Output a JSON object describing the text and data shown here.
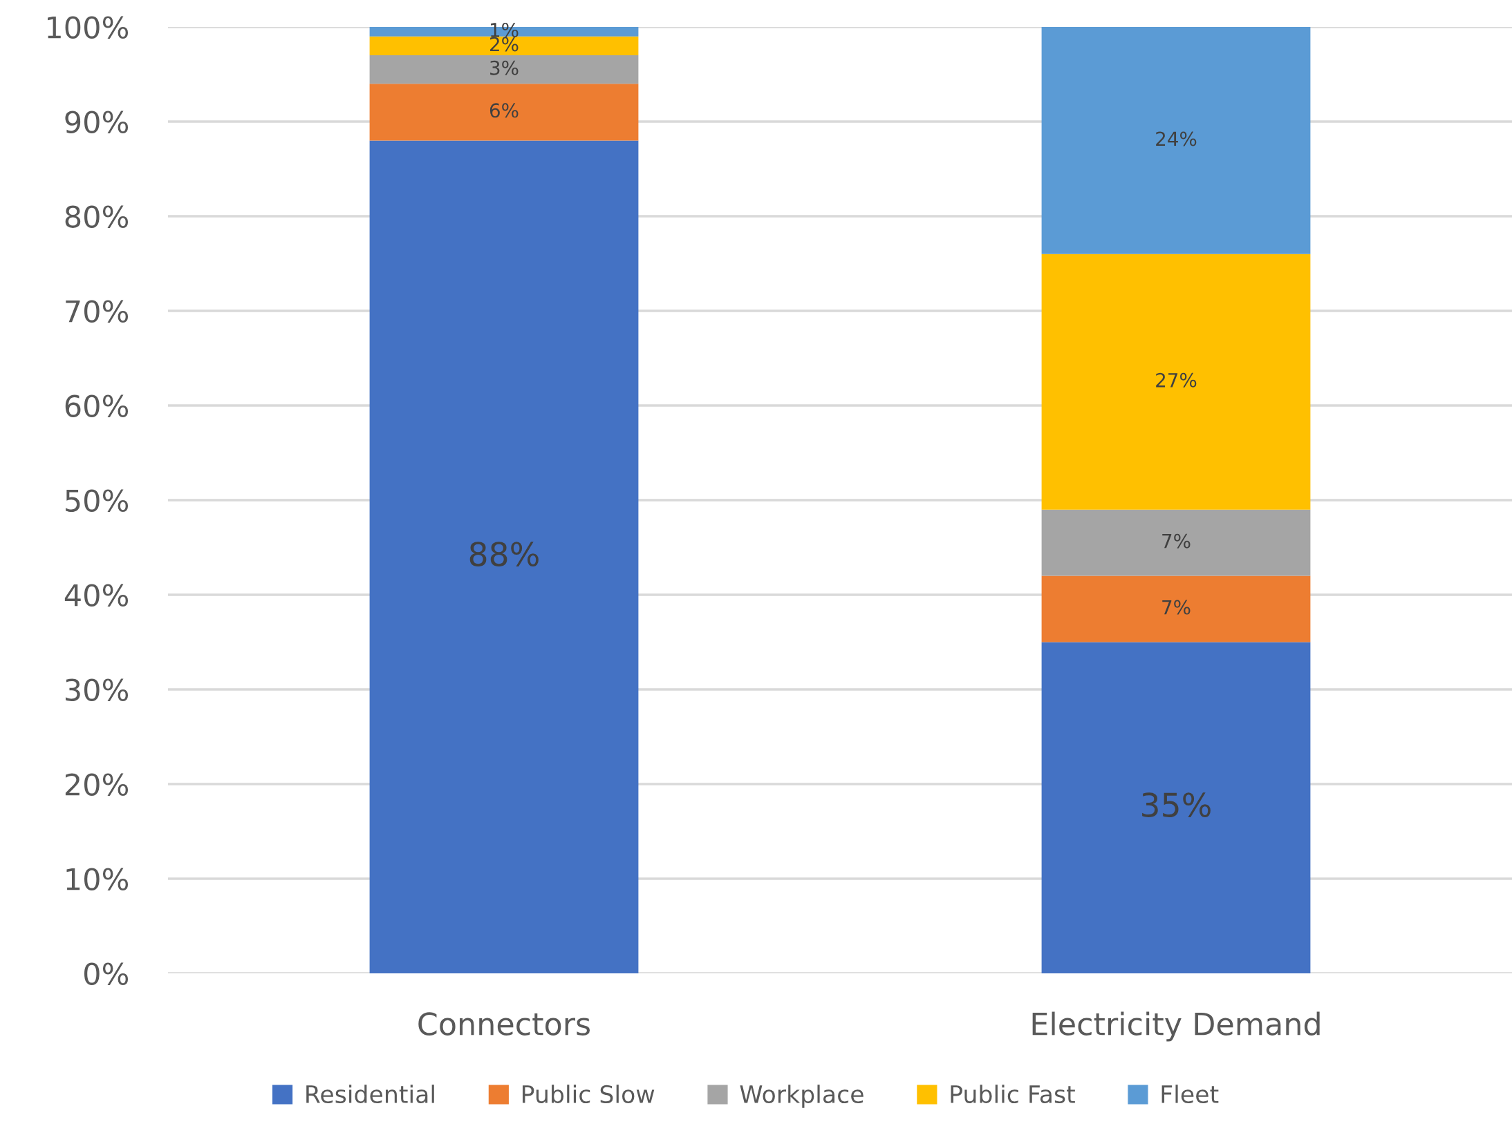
{
  "chart_data": {
    "type": "bar",
    "stacked": true,
    "categories": [
      "Connectors",
      "Electricity Demand"
    ],
    "series": [
      {
        "name": "Residential",
        "color": "#4472c4",
        "values": [
          88,
          35
        ],
        "value_labels": [
          "88%",
          "35%"
        ]
      },
      {
        "name": "Public Slow",
        "color": "#ed7d31",
        "values": [
          6,
          7
        ],
        "value_labels": [
          "6%",
          "7%"
        ]
      },
      {
        "name": "Workplace",
        "color": "#a5a5a5",
        "values": [
          3,
          7
        ],
        "value_labels": [
          "3%",
          "7%"
        ]
      },
      {
        "name": "Public Fast",
        "color": "#ffc000",
        "values": [
          2,
          27
        ],
        "value_labels": [
          "2%",
          "27%"
        ]
      },
      {
        "name": "Fleet",
        "color": "#5b9bd5",
        "values": [
          1,
          24
        ],
        "value_labels": [
          "1%",
          "24%"
        ]
      }
    ],
    "ylim": [
      0,
      100
    ],
    "yticks": [
      {
        "value": 0,
        "label": "0%"
      },
      {
        "value": 10,
        "label": "10%"
      },
      {
        "value": 20,
        "label": "20%"
      },
      {
        "value": 30,
        "label": "30%"
      },
      {
        "value": 40,
        "label": "40%"
      },
      {
        "value": 50,
        "label": "50%"
      },
      {
        "value": 60,
        "label": "60%"
      },
      {
        "value": 70,
        "label": "70%"
      },
      {
        "value": 80,
        "label": "80%"
      },
      {
        "value": 90,
        "label": "90%"
      },
      {
        "value": 100,
        "label": "100%"
      }
    ],
    "grid": "y",
    "legend": "bottom"
  }
}
